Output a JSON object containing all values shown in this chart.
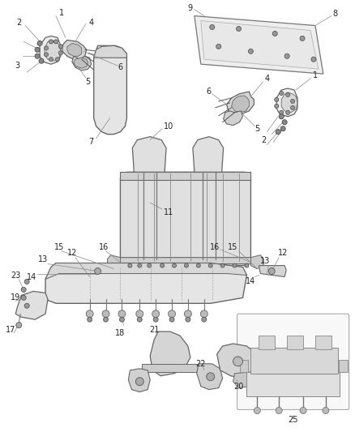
{
  "background_color": "#ffffff",
  "fig_width": 4.38,
  "fig_height": 5.33,
  "dpi": 100,
  "line_color": "#555555",
  "thin_lw": 0.6,
  "med_lw": 0.9,
  "thick_lw": 1.2,
  "part_fc": "#e8e8e8",
  "part_ec": "#555555",
  "label_fs": 7,
  "label_color": "#222222"
}
